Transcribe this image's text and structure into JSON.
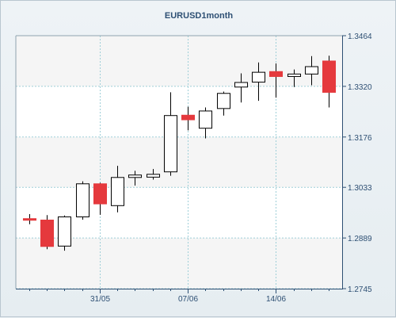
{
  "chart_data": {
    "type": "candlestick",
    "title": "EURUSD1month",
    "x_ticks": [
      "31/05",
      "07/06",
      "14/06"
    ],
    "y_ticks": [
      "1.3464",
      "1.3320",
      "1.3176",
      "1.3033",
      "1.2889",
      "1.2745"
    ],
    "ylim": [
      1.2745,
      1.3464
    ],
    "grid": true,
    "y_axis_side": "right",
    "colors": {
      "up": "#ffffff",
      "down": "#e5393d",
      "outline": "#000000",
      "grid": "#9fcfd8",
      "band": "#f5f5f5"
    },
    "candles": [
      {
        "open": 1.2944,
        "high": 1.2957,
        "low": 1.2928,
        "close": 1.294
      },
      {
        "open": 1.294,
        "high": 1.2954,
        "low": 1.2857,
        "close": 1.2865
      },
      {
        "open": 1.2866,
        "high": 1.2953,
        "low": 1.2853,
        "close": 1.2949
      },
      {
        "open": 1.2949,
        "high": 1.305,
        "low": 1.2941,
        "close": 1.3043
      },
      {
        "open": 1.3043,
        "high": 1.3046,
        "low": 1.2955,
        "close": 1.2986
      },
      {
        "open": 1.2981,
        "high": 1.3094,
        "low": 1.2962,
        "close": 1.3061
      },
      {
        "open": 1.3061,
        "high": 1.308,
        "low": 1.3038,
        "close": 1.3068
      },
      {
        "open": 1.3062,
        "high": 1.3085,
        "low": 1.3055,
        "close": 1.307
      },
      {
        "open": 1.3077,
        "high": 1.3303,
        "low": 1.3066,
        "close": 1.3237
      },
      {
        "open": 1.3238,
        "high": 1.3262,
        "low": 1.3195,
        "close": 1.3225
      },
      {
        "open": 1.3201,
        "high": 1.326,
        "low": 1.3172,
        "close": 1.325
      },
      {
        "open": 1.3257,
        "high": 1.3305,
        "low": 1.3237,
        "close": 1.33
      },
      {
        "open": 1.3318,
        "high": 1.3357,
        "low": 1.3274,
        "close": 1.3331
      },
      {
        "open": 1.3332,
        "high": 1.3388,
        "low": 1.3279,
        "close": 1.336
      },
      {
        "open": 1.3362,
        "high": 1.3385,
        "low": 1.3288,
        "close": 1.3348
      },
      {
        "open": 1.3348,
        "high": 1.3368,
        "low": 1.3318,
        "close": 1.3355
      },
      {
        "open": 1.3355,
        "high": 1.3406,
        "low": 1.3323,
        "close": 1.3376
      },
      {
        "open": 1.3392,
        "high": 1.3407,
        "low": 1.326,
        "close": 1.3303
      }
    ]
  }
}
